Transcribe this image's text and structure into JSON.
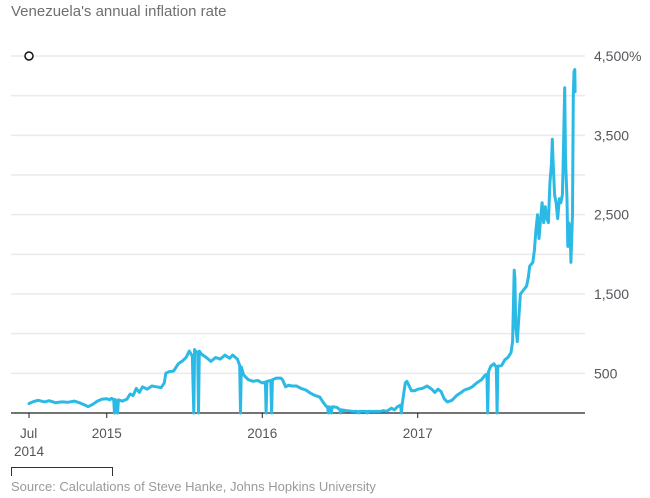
{
  "title": "Venezuela's annual inflation rate",
  "source": "Source: Calculations of Steve Hanke, Johns Hopkins University",
  "colors": {
    "line": "#2bbae6",
    "grid": "#eaeaea",
    "axis": "#222222",
    "text": "#55565a"
  },
  "chart_data": {
    "type": "line",
    "title": "Venezuela's annual inflation rate",
    "xlabel": "",
    "ylabel": "",
    "y_unit": "%",
    "ylim": [
      0,
      4500
    ],
    "y_gridlines": [
      500,
      1000,
      1500,
      2000,
      2500,
      3000,
      3500,
      4000,
      4500
    ],
    "y_ticks": [
      {
        "value": 4500,
        "label": "4,500%"
      },
      {
        "value": 3500,
        "label": "3,500"
      },
      {
        "value": 2500,
        "label": "2,500"
      },
      {
        "value": 1500,
        "label": "1,500"
      },
      {
        "value": 500,
        "label": "500"
      }
    ],
    "x_ticks": [
      {
        "value": 2014.5,
        "label": "Jul",
        "sublabel": "2014"
      },
      {
        "value": 2015.0,
        "label": "2015",
        "sublabel": ""
      },
      {
        "value": 2016.0,
        "label": "2016",
        "sublabel": ""
      },
      {
        "value": 2017.0,
        "label": "2017",
        "sublabel": ""
      }
    ],
    "xlim": [
      2014.38,
      2018.06
    ],
    "grid": true,
    "legend": "none",
    "marker": {
      "x": 2014.5,
      "y": 4500,
      "shape": "open-circle"
    },
    "series": [
      {
        "name": "Annual inflation rate",
        "points": [
          [
            2014.5,
            120
          ],
          [
            2014.53,
            145
          ],
          [
            2014.56,
            160
          ],
          [
            2014.6,
            140
          ],
          [
            2014.63,
            155
          ],
          [
            2014.67,
            130
          ],
          [
            2014.71,
            140
          ],
          [
            2014.75,
            135
          ],
          [
            2014.79,
            150
          ],
          [
            2014.83,
            125
          ],
          [
            2014.86,
            100
          ],
          [
            2014.88,
            80
          ],
          [
            2014.91,
            110
          ],
          [
            2014.94,
            150
          ],
          [
            2014.97,
            175
          ],
          [
            2015.0,
            180
          ],
          [
            2015.02,
            165
          ],
          [
            2015.03,
            185
          ],
          [
            2015.045,
            170
          ],
          [
            2015.05,
            0
          ],
          [
            2015.055,
            170
          ],
          [
            2015.07,
            0
          ],
          [
            2015.075,
            165
          ],
          [
            2015.1,
            150
          ],
          [
            2015.13,
            175
          ],
          [
            2015.15,
            240
          ],
          [
            2015.17,
            220
          ],
          [
            2015.19,
            310
          ],
          [
            2015.21,
            260
          ],
          [
            2015.23,
            330
          ],
          [
            2015.26,
            300
          ],
          [
            2015.29,
            340
          ],
          [
            2015.32,
            330
          ],
          [
            2015.35,
            320
          ],
          [
            2015.37,
            380
          ],
          [
            2015.38,
            500
          ],
          [
            2015.4,
            520
          ],
          [
            2015.43,
            530
          ],
          [
            2015.46,
            620
          ],
          [
            2015.49,
            660
          ],
          [
            2015.51,
            700
          ],
          [
            2015.53,
            780
          ],
          [
            2015.55,
            720
          ],
          [
            2015.56,
            0
          ],
          [
            2015.565,
            800
          ],
          [
            2015.57,
            780
          ],
          [
            2015.585,
            760
          ],
          [
            2015.59,
            0
          ],
          [
            2015.595,
            780
          ],
          [
            2015.61,
            740
          ],
          [
            2015.64,
            700
          ],
          [
            2015.67,
            650
          ],
          [
            2015.7,
            700
          ],
          [
            2015.73,
            680
          ],
          [
            2015.76,
            730
          ],
          [
            2015.79,
            690
          ],
          [
            2015.81,
            730
          ],
          [
            2015.84,
            680
          ],
          [
            2015.855,
            600
          ],
          [
            2015.86,
            0
          ],
          [
            2015.865,
            580
          ],
          [
            2015.88,
            480
          ],
          [
            2015.91,
            420
          ],
          [
            2015.94,
            400
          ],
          [
            2015.97,
            410
          ],
          [
            2016.0,
            380
          ],
          [
            2016.02,
            390
          ],
          [
            2016.025,
            0
          ],
          [
            2016.03,
            400
          ],
          [
            2016.055,
            410
          ],
          [
            2016.06,
            0
          ],
          [
            2016.065,
            420
          ],
          [
            2016.09,
            440
          ],
          [
            2016.12,
            440
          ],
          [
            2016.13,
            420
          ],
          [
            2016.15,
            330
          ],
          [
            2016.17,
            350
          ],
          [
            2016.19,
            340
          ],
          [
            2016.22,
            340
          ],
          [
            2016.25,
            310
          ],
          [
            2016.28,
            290
          ],
          [
            2016.31,
            250
          ],
          [
            2016.34,
            220
          ],
          [
            2016.37,
            200
          ],
          [
            2016.39,
            140
          ],
          [
            2016.41,
            90
          ],
          [
            2016.42,
            70
          ],
          [
            2016.425,
            0
          ],
          [
            2016.43,
            80
          ],
          [
            2016.445,
            0
          ],
          [
            2016.45,
            80
          ],
          [
            2016.48,
            70
          ],
          [
            2016.5,
            40
          ],
          [
            2016.505,
            0
          ],
          [
            2016.51,
            40
          ],
          [
            2016.54,
            30
          ],
          [
            2016.58,
            20
          ],
          [
            2016.61,
            20
          ],
          [
            2016.62,
            0
          ],
          [
            2016.625,
            20
          ],
          [
            2016.67,
            20
          ],
          [
            2016.675,
            0
          ],
          [
            2016.68,
            20
          ],
          [
            2016.72,
            20
          ],
          [
            2016.76,
            20
          ],
          [
            2016.78,
            30
          ],
          [
            2016.8,
            20
          ],
          [
            2016.83,
            60
          ],
          [
            2016.85,
            40
          ],
          [
            2016.87,
            80
          ],
          [
            2016.89,
            100
          ],
          [
            2016.895,
            0
          ],
          [
            2016.9,
            110
          ],
          [
            2016.92,
            380
          ],
          [
            2016.93,
            400
          ],
          [
            2016.94,
            360
          ],
          [
            2016.96,
            280
          ],
          [
            2016.98,
            280
          ],
          [
            2017.0,
            300
          ],
          [
            2017.03,
            310
          ],
          [
            2017.06,
            340
          ],
          [
            2017.09,
            300
          ],
          [
            2017.11,
            260
          ],
          [
            2017.13,
            300
          ],
          [
            2017.15,
            270
          ],
          [
            2017.17,
            180
          ],
          [
            2017.19,
            140
          ],
          [
            2017.22,
            160
          ],
          [
            2017.25,
            220
          ],
          [
            2017.28,
            260
          ],
          [
            2017.3,
            290
          ],
          [
            2017.33,
            310
          ],
          [
            2017.35,
            330
          ],
          [
            2017.38,
            380
          ],
          [
            2017.41,
            420
          ],
          [
            2017.43,
            470
          ],
          [
            2017.445,
            490
          ],
          [
            2017.45,
            0
          ],
          [
            2017.455,
            520
          ],
          [
            2017.47,
            590
          ],
          [
            2017.49,
            620
          ],
          [
            2017.505,
            580
          ],
          [
            2017.51,
            0
          ],
          [
            2017.515,
            590
          ],
          [
            2017.54,
            600
          ],
          [
            2017.56,
            670
          ],
          [
            2017.58,
            700
          ],
          [
            2017.6,
            760
          ],
          [
            2017.61,
            900
          ],
          [
            2017.62,
            1800
          ],
          [
            2017.625,
            1700
          ],
          [
            2017.63,
            1100
          ],
          [
            2017.64,
            900
          ],
          [
            2017.65,
            1200
          ],
          [
            2017.66,
            1500
          ],
          [
            2017.68,
            1550
          ],
          [
            2017.7,
            1600
          ],
          [
            2017.71,
            1700
          ],
          [
            2017.72,
            1850
          ],
          [
            2017.74,
            1900
          ],
          [
            2017.75,
            2050
          ],
          [
            2017.76,
            2300
          ],
          [
            2017.77,
            2500
          ],
          [
            2017.78,
            2200
          ],
          [
            2017.79,
            2450
          ],
          [
            2017.8,
            2650
          ],
          [
            2017.81,
            2400
          ],
          [
            2017.82,
            2600
          ],
          [
            2017.83,
            2450
          ],
          [
            2017.84,
            2400
          ],
          [
            2017.85,
            2900
          ],
          [
            2017.86,
            3150
          ],
          [
            2017.865,
            3450
          ],
          [
            2017.87,
            3200
          ],
          [
            2017.88,
            2750
          ],
          [
            2017.89,
            2650
          ],
          [
            2017.9,
            2450
          ],
          [
            2017.91,
            2700
          ],
          [
            2017.92,
            2650
          ],
          [
            2017.93,
            2750
          ],
          [
            2017.935,
            3100
          ],
          [
            2017.94,
            3600
          ],
          [
            2017.945,
            4100
          ],
          [
            2017.95,
            3200
          ],
          [
            2017.96,
            2700
          ],
          [
            2017.965,
            2100
          ],
          [
            2017.97,
            2400
          ],
          [
            2017.98,
            2350
          ],
          [
            2017.985,
            1900
          ],
          [
            2017.99,
            2200
          ],
          [
            2017.995,
            2500
          ],
          [
            2018.0,
            4000
          ],
          [
            2018.005,
            4300
          ],
          [
            2018.01,
            4330
          ],
          [
            2018.012,
            4050
          ]
        ]
      }
    ]
  }
}
